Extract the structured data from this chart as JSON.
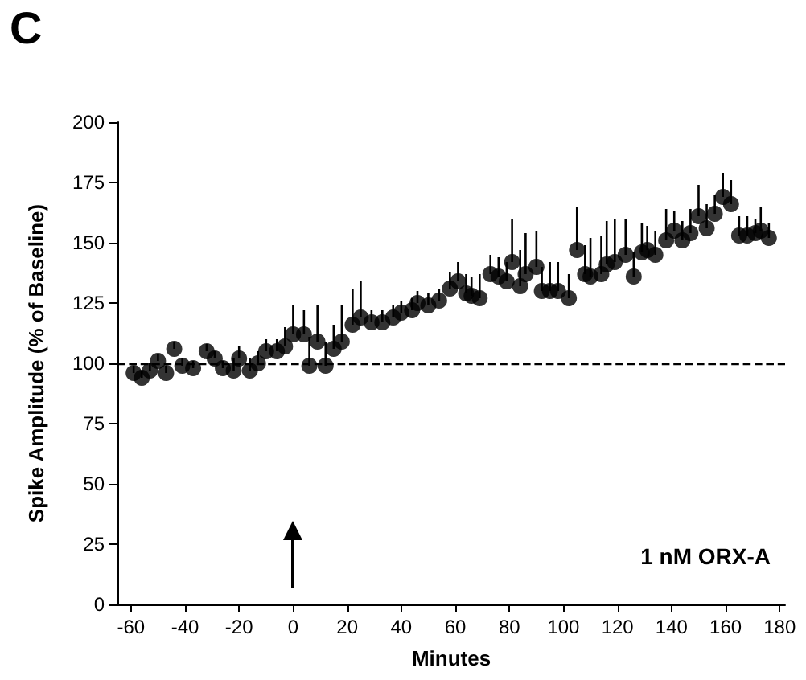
{
  "chart_data": {
    "type": "scatter",
    "title": "C",
    "xlabel": "Minutes",
    "ylabel": "Spike Amplitude (% of Baseline)",
    "annotations": [
      "1 nM ORX-A"
    ],
    "xlim": [
      -65,
      182
    ],
    "xticks": [
      -60,
      -40,
      -20,
      0,
      20,
      40,
      60,
      80,
      100,
      120,
      140,
      160,
      180
    ],
    "ylim": [
      0,
      200
    ],
    "yticks": [
      0,
      25,
      50,
      75,
      100,
      125,
      150,
      175,
      200
    ],
    "grid": false,
    "marker": "circle",
    "ref_lines": [
      {
        "axis": "y",
        "value": 100,
        "line_style": "dashed",
        "color": "#000000"
      }
    ],
    "series": [
      {
        "color": "#000000",
        "x": [
          -59,
          -56,
          -53,
          -50,
          -47,
          -44,
          -41,
          -37,
          -32,
          -29,
          -26,
          -22,
          -20,
          -16,
          -13,
          -10,
          -6,
          -3,
          0,
          4,
          6,
          9,
          12,
          15,
          18,
          22,
          25,
          29,
          33,
          37,
          40,
          44,
          46,
          50,
          54,
          58,
          61,
          64,
          66,
          69,
          73,
          76,
          79,
          81,
          84,
          86,
          90,
          92,
          95,
          98,
          102,
          105,
          108,
          110,
          114,
          116,
          119,
          123,
          126,
          129,
          131,
          134,
          138,
          141,
          144,
          147,
          150,
          153,
          156,
          159,
          162,
          165,
          168,
          171,
          173,
          176
        ],
        "values": [
          96,
          94,
          97,
          101,
          96,
          106,
          99,
          98,
          105,
          102,
          98,
          97,
          102,
          97,
          100,
          105,
          105,
          107,
          112,
          112,
          99,
          109,
          99,
          106,
          109,
          116,
          119,
          117,
          117,
          119,
          121,
          122,
          125,
          124,
          126,
          131,
          134,
          129,
          128,
          127,
          137,
          136,
          134,
          142,
          132,
          137,
          140,
          130,
          130,
          130,
          127,
          147,
          137,
          136,
          137,
          141,
          142,
          145,
          136,
          146,
          147,
          145,
          151,
          155,
          151,
          154,
          161,
          156,
          162,
          169,
          166,
          153,
          153,
          154,
          155,
          152
        ],
        "errors": [
          [
            96,
            99
          ],
          [
            94,
            97
          ],
          [
            97,
            100
          ],
          [
            101,
            104
          ],
          [
            96,
            99
          ],
          [
            106,
            109
          ],
          [
            99,
            102
          ],
          [
            98,
            101
          ],
          [
            105,
            108
          ],
          [
            102,
            105
          ],
          [
            98,
            101
          ],
          [
            97,
            102
          ],
          [
            102,
            107
          ],
          [
            97,
            102
          ],
          [
            100,
            105
          ],
          [
            105,
            110
          ],
          [
            105,
            110
          ],
          [
            107,
            115
          ],
          [
            112,
            124
          ],
          [
            112,
            122
          ],
          [
            99,
            111
          ],
          [
            109,
            124
          ],
          [
            99,
            109
          ],
          [
            106,
            116
          ],
          [
            109,
            124
          ],
          [
            116,
            131
          ],
          [
            119,
            134
          ],
          [
            117,
            122
          ],
          [
            117,
            122
          ],
          [
            119,
            124
          ],
          [
            121,
            126
          ],
          [
            122,
            127
          ],
          [
            125,
            130
          ],
          [
            124,
            129
          ],
          [
            126,
            131
          ],
          [
            131,
            138
          ],
          [
            134,
            142
          ],
          [
            129,
            137
          ],
          [
            128,
            136
          ],
          [
            127,
            137
          ],
          [
            137,
            145
          ],
          [
            136,
            144
          ],
          [
            134,
            142
          ],
          [
            142,
            160
          ],
          [
            132,
            147
          ],
          [
            137,
            154
          ],
          [
            140,
            155
          ],
          [
            130,
            140
          ],
          [
            130,
            142
          ],
          [
            130,
            142
          ],
          [
            127,
            137
          ],
          [
            147,
            165
          ],
          [
            137,
            149
          ],
          [
            136,
            152
          ],
          [
            137,
            153
          ],
          [
            141,
            159
          ],
          [
            142,
            160
          ],
          [
            145,
            160
          ],
          [
            136,
            146
          ],
          [
            146,
            158
          ],
          [
            147,
            157
          ],
          [
            145,
            155
          ],
          [
            151,
            164
          ],
          [
            155,
            163
          ],
          [
            151,
            159
          ],
          [
            154,
            164
          ],
          [
            161,
            174
          ],
          [
            156,
            166
          ],
          [
            162,
            170
          ],
          [
            169,
            179
          ],
          [
            166,
            176
          ],
          [
            153,
            161
          ],
          [
            153,
            161
          ],
          [
            154,
            160
          ],
          [
            155,
            165
          ],
          [
            152,
            158
          ]
        ]
      }
    ]
  }
}
